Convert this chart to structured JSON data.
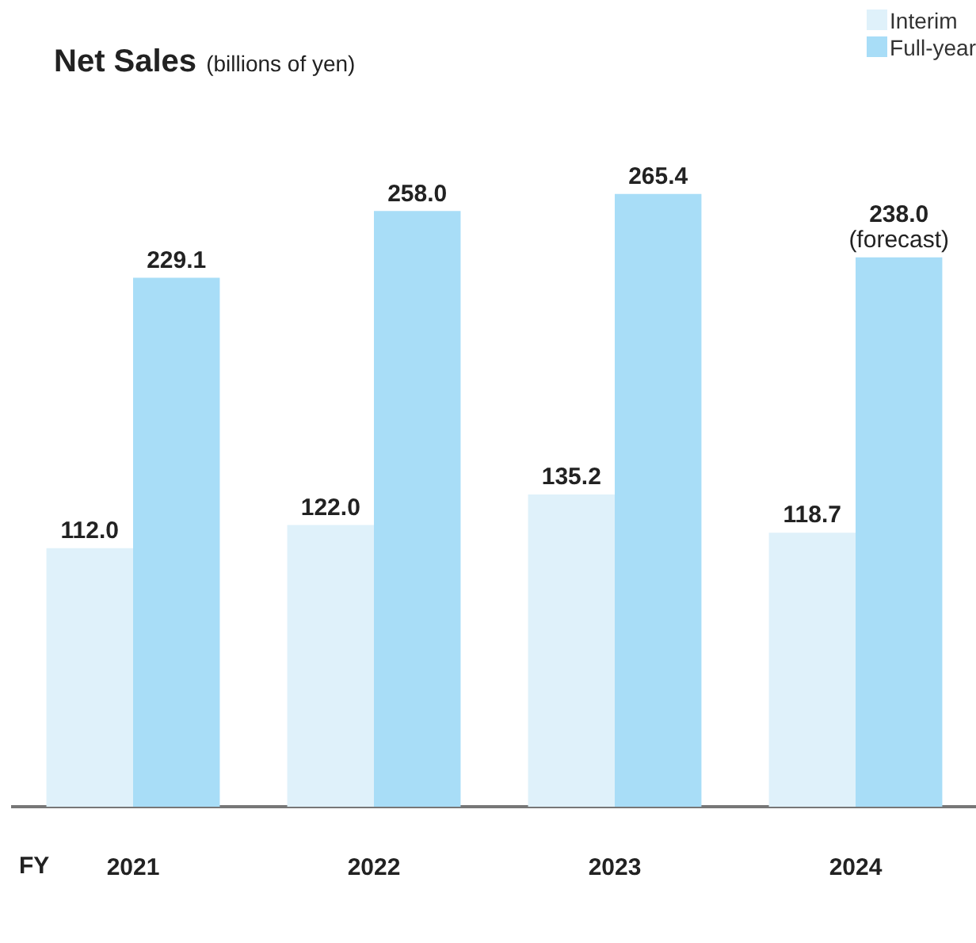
{
  "chart_data": {
    "type": "bar",
    "title": "Net Sales",
    "subtitle": "(billions of yen)",
    "xlabel": "FY",
    "categories": [
      "2021",
      "2022",
      "2023",
      "2024"
    ],
    "legend": "top right",
    "series": [
      {
        "name": "Interim",
        "color": "#dff1fa",
        "values": [
          112.0,
          122.0,
          135.2,
          118.7
        ],
        "value_labels": [
          "112.0",
          "122.0",
          "135.2",
          "118.7"
        ]
      },
      {
        "name": "Full-year",
        "color": "#a8ddf7",
        "values": [
          229.1,
          258.0,
          265.4,
          238.0
        ],
        "value_labels": [
          "229.1",
          "258.0",
          "265.4",
          "238.0\n(forecast)"
        ]
      }
    ]
  }
}
